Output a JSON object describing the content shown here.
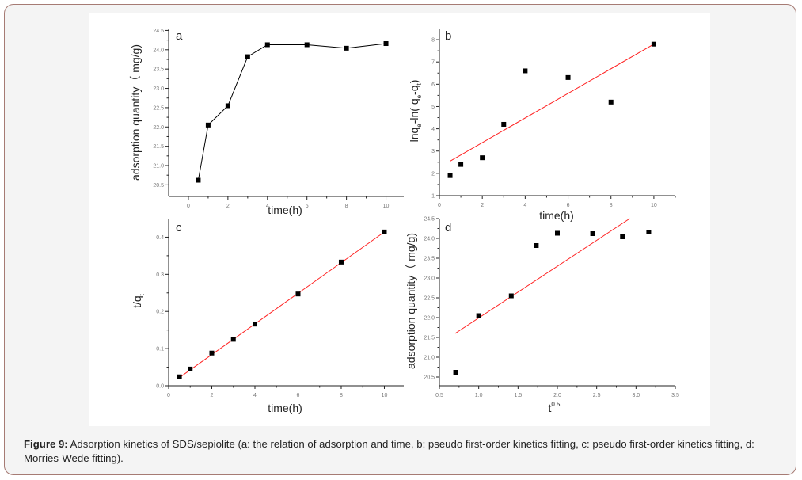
{
  "caption": {
    "label": "Figure 9:",
    "text": " Adsorption kinetics of SDS/sepiolite (a: the relation of adsorption and time, b: pseudo first-order kinetics fitting, c: pseudo first-order kinetics fitting, d: Morries-Wede fitting)."
  },
  "colors": {
    "points": "#000000",
    "fit_line": "#ff2020",
    "connect_line": "#000000"
  },
  "chart_data": [
    {
      "id": "a",
      "type": "line",
      "panel": "a",
      "xlabel": "time(h)",
      "ylabel": {
        "main": "adsorption quantity（ mg/g)"
      },
      "xlim": [
        -1,
        10.9
      ],
      "ylim": [
        20.2,
        24.55
      ],
      "xticks": [
        0,
        2,
        4,
        6,
        8,
        10
      ],
      "xtick_labels": [
        "0",
        "2",
        "4",
        "6",
        "8",
        "10"
      ],
      "yticks": [
        20.5,
        21,
        21.5,
        22,
        22.5,
        23,
        23.5,
        24,
        24.5
      ],
      "ytick_labels": [
        "20.5",
        "21.0",
        "21.5",
        "22.0",
        "22.5",
        "23.0",
        "23.5",
        "24.0",
        "24.5"
      ],
      "x": [
        0.5,
        1,
        2,
        3,
        4,
        6,
        8,
        10
      ],
      "y": [
        20.62,
        22.05,
        22.55,
        23.82,
        24.13,
        24.13,
        24.04,
        24.16
      ],
      "connected": true
    },
    {
      "id": "b",
      "type": "scatter",
      "panel": "b",
      "xlabel": "time(h)",
      "ylabel": {
        "parts": [
          "lnq",
          "e",
          "-ln( q",
          "e",
          "-q",
          "t",
          ")"
        ]
      },
      "xlim": [
        0,
        11
      ],
      "ylim": [
        1,
        8.5
      ],
      "xticks": [
        0,
        2,
        4,
        6,
        8,
        10
      ],
      "xtick_labels": [
        "0",
        "2",
        "4",
        "6",
        "8",
        "10"
      ],
      "yticks": [
        1,
        2,
        3,
        4,
        5,
        6,
        7,
        8
      ],
      "ytick_labels": [
        "1",
        "2",
        "3",
        "4",
        "5",
        "6",
        "7",
        "8"
      ],
      "x": [
        0.5,
        1,
        2,
        3,
        4,
        6,
        8,
        10
      ],
      "y": [
        1.9,
        2.4,
        2.7,
        4.2,
        6.6,
        6.3,
        5.2,
        7.8
      ],
      "fit": {
        "x": [
          0.5,
          10
        ],
        "y": [
          2.55,
          7.8
        ]
      }
    },
    {
      "id": "c",
      "type": "scatter",
      "panel": "c",
      "xlabel": "time(h)",
      "ylabel": {
        "parts": [
          "t/q",
          "t"
        ]
      },
      "xlim": [
        0,
        10.9
      ],
      "ylim": [
        0,
        0.45
      ],
      "xticks": [
        0,
        2,
        4,
        6,
        8,
        10
      ],
      "xtick_labels": [
        "0",
        "2",
        "4",
        "6",
        "8",
        "10"
      ],
      "yticks": [
        0,
        0.1,
        0.2,
        0.3,
        0.4
      ],
      "ytick_labels": [
        "0.0",
        "0.1",
        "0.2",
        "0.3",
        "0.4"
      ],
      "x": [
        0.5,
        1,
        2,
        3,
        4,
        6,
        8,
        10
      ],
      "y": [
        0.024,
        0.045,
        0.088,
        0.125,
        0.166,
        0.247,
        0.333,
        0.414
      ],
      "fit": {
        "x": [
          0.5,
          10
        ],
        "y": [
          0.022,
          0.414
        ]
      }
    },
    {
      "id": "d",
      "type": "scatter",
      "panel": "d",
      "xlabel": {
        "main": "t",
        "sup": "0.5"
      },
      "ylabel": {
        "main": "adsorption quantity（ mg/g)"
      },
      "xlim": [
        0.5,
        3.5
      ],
      "ylim": [
        20.28,
        24.5
      ],
      "xticks": [
        0.5,
        1,
        1.5,
        2,
        2.5,
        3,
        3.5
      ],
      "xtick_labels": [
        "0.5",
        "1.0",
        "1.5",
        "2.0",
        "2.5",
        "3.0",
        "3.5"
      ],
      "yticks": [
        20.5,
        21,
        21.5,
        22,
        22.5,
        23,
        23.5,
        24,
        24.5
      ],
      "ytick_labels": [
        "20.5",
        "21.0",
        "21.5",
        "22.0",
        "22.5",
        "23.0",
        "23.5",
        "24.0",
        "24.5"
      ],
      "x": [
        0.707,
        1,
        1.414,
        1.732,
        2,
        2.449,
        2.828,
        3.162
      ],
      "y": [
        20.62,
        22.05,
        22.55,
        23.82,
        24.13,
        24.12,
        24.04,
        24.16
      ],
      "fit": {
        "x": [
          0.7,
          2.92
        ],
        "y": [
          21.6,
          24.5
        ]
      }
    }
  ]
}
